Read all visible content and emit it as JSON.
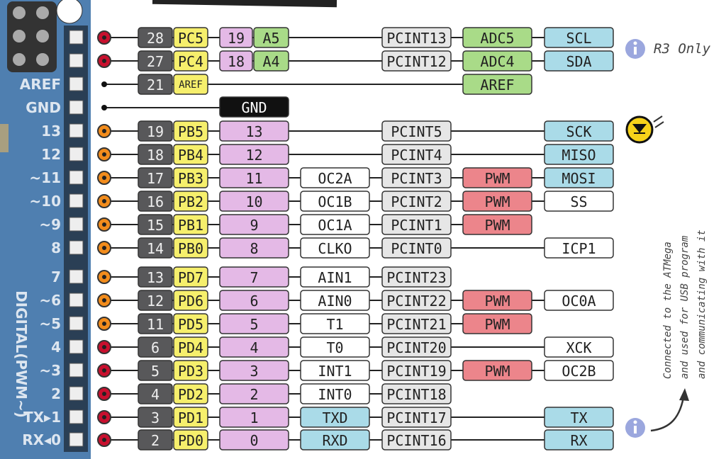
{
  "board": {
    "side_label": "DIGITAL(PWM~)"
  },
  "notes": {
    "r3": "R3 Only",
    "usb": [
      "Connected to the ATMega",
      "and used for USB program",
      "and communicating with it"
    ]
  },
  "rows": [
    {
      "chip": "28",
      "port": "PC5",
      "digital": "19",
      "analog": "A5",
      "pcint": "PCINT13",
      "pwm": "ADC5",
      "comm": "SCL"
    },
    {
      "chip": "27",
      "port": "PC4",
      "digital": "18",
      "analog": "A4",
      "pcint": "PCINT12",
      "pwm": "ADC4",
      "comm": "SDA"
    },
    {
      "board": "AREF",
      "chip": "21",
      "port": "AREF",
      "pwm": "AREF"
    },
    {
      "board": "GND",
      "digital": "GND"
    },
    {
      "board": "13",
      "chip": "19",
      "port": "PB5",
      "digital": "13",
      "pcint": "PCINT5",
      "comm": "SCK"
    },
    {
      "board": "12",
      "chip": "18",
      "port": "PB4",
      "digital": "12",
      "pcint": "PCINT4",
      "comm": "MISO"
    },
    {
      "board": "~11",
      "chip": "17",
      "port": "PB3",
      "digital": "11",
      "alt": "OC2A",
      "pcint": "PCINT3",
      "pwm": "PWM",
      "comm": "MOSI"
    },
    {
      "board": "~10",
      "chip": "16",
      "port": "PB2",
      "digital": "10",
      "alt": "OC1B",
      "pcint": "PCINT2",
      "pwm": "PWM",
      "comm": "SS"
    },
    {
      "board": "~9",
      "chip": "15",
      "port": "PB1",
      "digital": "9",
      "alt": "OC1A",
      "pcint": "PCINT1",
      "pwm": "PWM"
    },
    {
      "board": "8",
      "chip": "14",
      "port": "PB0",
      "digital": "8",
      "alt": "CLKO",
      "pcint": "PCINT0",
      "comm": "ICP1"
    },
    {
      "board": "7",
      "chip": "13",
      "port": "PD7",
      "digital": "7",
      "alt": "AIN1",
      "pcint": "PCINT23"
    },
    {
      "board": "~6",
      "chip": "12",
      "port": "PD6",
      "digital": "6",
      "alt": "AIN0",
      "pcint": "PCINT22",
      "pwm": "PWM",
      "comm": "OC0A"
    },
    {
      "board": "~5",
      "chip": "11",
      "port": "PD5",
      "digital": "5",
      "alt": "T1",
      "pcint": "PCINT21",
      "pwm": "PWM"
    },
    {
      "board": "4",
      "chip": "6",
      "port": "PD4",
      "digital": "4",
      "alt": "T0",
      "pcint": "PCINT20",
      "comm": "XCK"
    },
    {
      "board": "~3",
      "chip": "5",
      "port": "PD3",
      "digital": "3",
      "alt": "INT1",
      "pcint": "PCINT19",
      "pwm": "PWM",
      "comm": "OC2B"
    },
    {
      "board": "2",
      "chip": "4",
      "port": "PD2",
      "digital": "2",
      "alt": "INT0",
      "pcint": "PCINT18"
    },
    {
      "board": "TX▸1",
      "chip": "3",
      "port": "PD1",
      "digital": "1",
      "alt": "TXD",
      "pcint": "PCINT17",
      "comm": "TX"
    },
    {
      "board": "RX◂0",
      "chip": "2",
      "port": "PD0",
      "digital": "0",
      "alt": "RXD",
      "pcint": "PCINT16",
      "comm": "RX"
    }
  ]
}
